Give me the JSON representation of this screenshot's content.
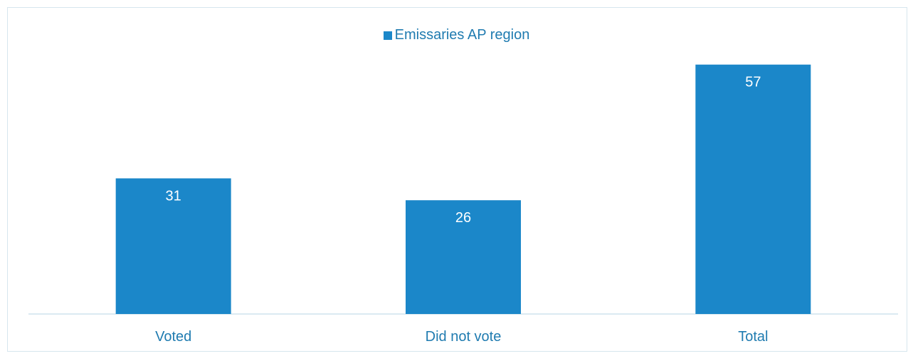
{
  "colors": {
    "bar": "#1b87c9",
    "axis_line": "#cfe4ee",
    "label_text": "#1f7bb0",
    "value_text": "#ffffff"
  },
  "chart_data": {
    "type": "bar",
    "categories": [
      "Voted",
      "Did not vote",
      "Total"
    ],
    "series": [
      {
        "name": "Emissaries AP region",
        "values": [
          31,
          26,
          57
        ]
      }
    ],
    "ylim": [
      0,
      62
    ],
    "grid": false,
    "legend_position": "top-center",
    "data_labels": "inside-top"
  }
}
